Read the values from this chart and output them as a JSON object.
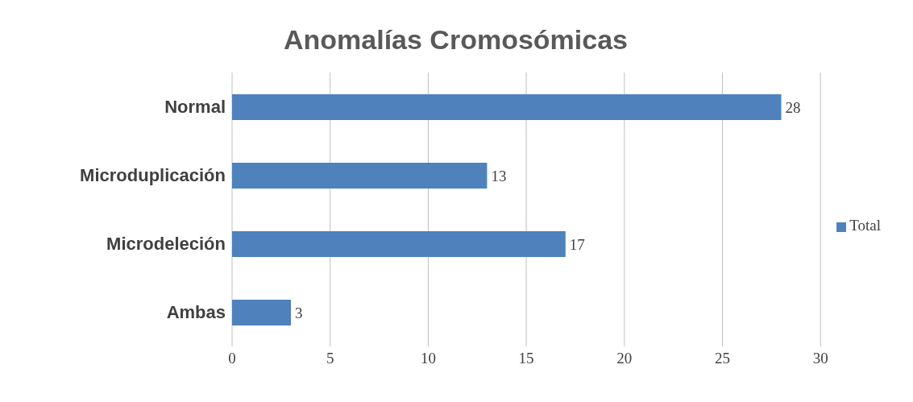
{
  "chart_data": {
    "type": "bar",
    "orientation": "horizontal",
    "title": "Anomalías Cromosómicas",
    "categories": [
      "Normal",
      "Microduplicación",
      "Microdeleción",
      "Ambas"
    ],
    "series": [
      {
        "name": "Total",
        "color": "#4f81bd",
        "values": [
          28,
          13,
          17,
          3
        ]
      }
    ],
    "xlim": [
      0,
      30
    ],
    "xticks": [
      0,
      5,
      10,
      15,
      20,
      25,
      30
    ],
    "grid": "x",
    "legend": "right",
    "data_labels": true
  }
}
